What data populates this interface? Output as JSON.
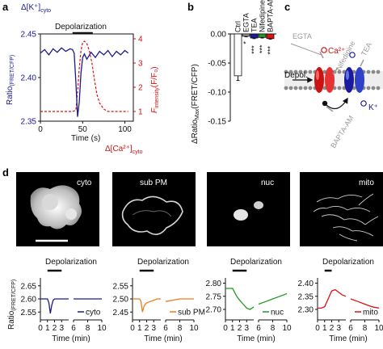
{
  "panel_labels": {
    "a": "a",
    "b": "b",
    "c": "c",
    "d": "d"
  },
  "panel_a": {
    "stim": "Depolarization",
    "ylabel_left": "Ratio",
    "ylabel_left_sub": "(FRET/CFP)",
    "left_top_label": "Δ[K⁺]",
    "left_top_sub": "cyto",
    "ylabel_right": "F",
    "ylabel_right_sub": "intensity",
    "ylabel_right_tail": "(F/F₀)",
    "right_bottom_label": "Δ[Ca²⁺]",
    "right_bottom_sub": "cyto",
    "xlabel": "Time (s)",
    "colors": {
      "k": "#1a1a8c",
      "ca": "#dd1111"
    }
  },
  "panel_b": {
    "ylabel": "ΔRatio",
    "ylabel_sub": "Max",
    "ylabel_tail": "(FRET/CFP)",
    "stars": "***"
  },
  "panel_c": {
    "egta": "EGTA",
    "ca_ion": "Ca²⁺",
    "nifedipine": "Nifedipine",
    "tea": "TEA",
    "depol": "Depol.",
    "bapta": "BAPTA-AM",
    "k_ion": "K⁺"
  },
  "panel_d": {
    "micrographs": [
      "cyto",
      "sub PM",
      "nuc",
      "mito"
    ],
    "stim": "Depolarization",
    "ylabel": "Ratio",
    "ylabel_sub": "(FRET/CFP)",
    "xlabel": "Time (min)",
    "legend_labels": [
      "cyto",
      "sub PM",
      "nuc",
      "mito"
    ]
  },
  "chart_data": [
    {
      "type": "line",
      "panel": "a",
      "xlabel": "Time (s)",
      "x_ticks": [
        0,
        50,
        100
      ],
      "xlim": [
        0,
        110
      ],
      "ylim_left": [
        2.35,
        2.45
      ],
      "y_ticks_left": [
        2.35,
        2.4,
        2.45
      ],
      "ylim_right": [
        0.6,
        4.2
      ],
      "y_ticks_right": [
        1,
        2,
        3,
        4
      ],
      "stimulus_window": [
        38,
        62
      ],
      "series": [
        {
          "axis": "left",
          "color": "#1a1a8c",
          "x": [
            0,
            5,
            10,
            15,
            20,
            25,
            30,
            35,
            38,
            40,
            42,
            44,
            46,
            48,
            50,
            52,
            55,
            60,
            65,
            70,
            75,
            80,
            85,
            90,
            95,
            100,
            104
          ],
          "y": [
            2.428,
            2.432,
            2.426,
            2.433,
            2.429,
            2.434,
            2.43,
            2.433,
            2.432,
            2.428,
            2.395,
            2.355,
            2.372,
            2.405,
            2.423,
            2.427,
            2.421,
            2.429,
            2.423,
            2.43,
            2.426,
            2.431,
            2.424,
            2.43,
            2.426,
            2.431,
            2.428
          ]
        },
        {
          "axis": "right",
          "color": "#dd1111",
          "x": [
            0,
            10,
            20,
            30,
            38,
            42,
            44,
            46,
            48,
            50,
            52,
            55,
            58,
            61,
            64,
            67,
            70,
            75,
            80,
            90,
            100,
            104
          ],
          "y": [
            1.0,
            1.0,
            1.0,
            1.0,
            1.0,
            1.05,
            1.8,
            2.8,
            3.5,
            3.85,
            3.9,
            3.8,
            3.5,
            3.0,
            2.3,
            1.7,
            1.35,
            1.1,
            1.0,
            1.0,
            1.0,
            1.0
          ]
        }
      ]
    },
    {
      "type": "bar",
      "panel": "b",
      "categories": [
        "Ctrl",
        "EGTA",
        "TEA",
        "Nifedipine",
        "BAPTA-AM"
      ],
      "values": [
        -0.072,
        -0.004,
        -0.007,
        -0.006,
        -0.008
      ],
      "errors": [
        0.008,
        0.001,
        0.001,
        0.001,
        0.001
      ],
      "colors": [
        "#ffffff",
        "#9a9a9a",
        "#1a1aa0",
        "#229922",
        "#dd1111"
      ],
      "significance": [
        "",
        "*",
        "***",
        "***",
        "***"
      ],
      "ylim": [
        -0.15,
        0.0
      ],
      "y_ticks": [
        -0.15,
        -0.1,
        -0.05,
        0.0
      ]
    },
    {
      "type": "line",
      "panel": "d",
      "xlabel": "Time (min)",
      "x_ticks": [
        0,
        1,
        2,
        3,
        6,
        8,
        10
      ],
      "subplots": [
        {
          "name": "cyto",
          "color": "#1a1a8c",
          "ylim": [
            2.52,
            2.68
          ],
          "y_ticks": [
            2.55,
            2.6,
            2.65
          ],
          "stim": [
            1,
            3
          ],
          "x": [
            0,
            0.5,
            1,
            1.2,
            1.4,
            1.6,
            1.8,
            2,
            2.5,
            3,
            3.5,
            4,
            6,
            7,
            8,
            9,
            10
          ],
          "y": [
            2.6,
            2.6,
            2.6,
            2.585,
            2.545,
            2.575,
            2.595,
            2.6,
            2.6,
            2.6,
            2.6,
            2.6,
            2.6,
            2.6,
            2.6,
            2.6,
            2.6
          ]
        },
        {
          "name": "sub PM",
          "color": "#f07a1a",
          "ylim": [
            2.42,
            2.58
          ],
          "y_ticks": [
            2.45,
            2.5,
            2.55
          ],
          "stim": [
            1,
            3
          ],
          "x": [
            0,
            0.5,
            1,
            1.2,
            1.4,
            1.6,
            1.8,
            2,
            2.5,
            3,
            3.5,
            4,
            6,
            7,
            8,
            9,
            10
          ],
          "y": [
            2.5,
            2.5,
            2.5,
            2.49,
            2.45,
            2.47,
            2.48,
            2.485,
            2.49,
            2.495,
            2.5,
            2.5,
            2.49,
            2.495,
            2.5,
            2.5,
            2.5
          ]
        },
        {
          "name": "nuc",
          "color": "#229922",
          "ylim": [
            2.66,
            2.82
          ],
          "y_ticks": [
            2.7,
            2.75,
            2.8
          ],
          "stim": [
            1,
            3
          ],
          "x": [
            0,
            0.5,
            1,
            1.3,
            1.6,
            2,
            2.5,
            3,
            3.5,
            4,
            6,
            7,
            8,
            9,
            10
          ],
          "y": [
            2.78,
            2.78,
            2.78,
            2.765,
            2.75,
            2.735,
            2.72,
            2.705,
            2.7,
            2.71,
            2.72,
            2.73,
            2.74,
            2.75,
            2.76
          ]
        },
        {
          "name": "mito",
          "color": "#dd1111",
          "ylim": [
            2.26,
            2.42
          ],
          "y_ticks": [
            2.3,
            2.35,
            2.4
          ],
          "stim": [
            1,
            2
          ],
          "x": [
            0,
            0.5,
            1,
            1.5,
            2,
            2.5,
            3,
            3.5,
            4,
            6,
            7,
            8,
            9,
            10
          ],
          "y": [
            2.305,
            2.305,
            2.31,
            2.34,
            2.37,
            2.375,
            2.365,
            2.355,
            2.35,
            2.34,
            2.33,
            2.32,
            2.31,
            2.305
          ]
        }
      ]
    }
  ]
}
